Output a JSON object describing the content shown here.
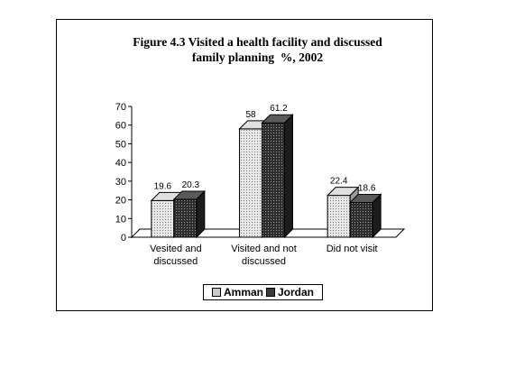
{
  "chart_data": {
    "type": "bar",
    "title": "Figure 4.3 Visited a health facility and discussed\nfamily planning  %, 2002",
    "categories": [
      "Vesited and\ndiscussed",
      "Visited and not\ndiscussed",
      "Did not visit"
    ],
    "series": [
      {
        "name": "Amman",
        "values": [
          19.6,
          58,
          22.4
        ],
        "color": "#c8c8c8"
      },
      {
        "name": "Jordan",
        "values": [
          20.3,
          61.2,
          18.6
        ],
        "color": "#3a3a3a"
      }
    ],
    "data_labels": [
      [
        "19.6",
        "58",
        "22.4"
      ],
      [
        "20.3",
        "61.2",
        "18.6"
      ]
    ],
    "ylim": [
      0,
      70
    ],
    "yticks": [
      0,
      10,
      20,
      30,
      40,
      50,
      60,
      70
    ],
    "xlabel": "",
    "ylabel": "",
    "legend_position": "bottom",
    "grid": false,
    "style": "3d"
  }
}
